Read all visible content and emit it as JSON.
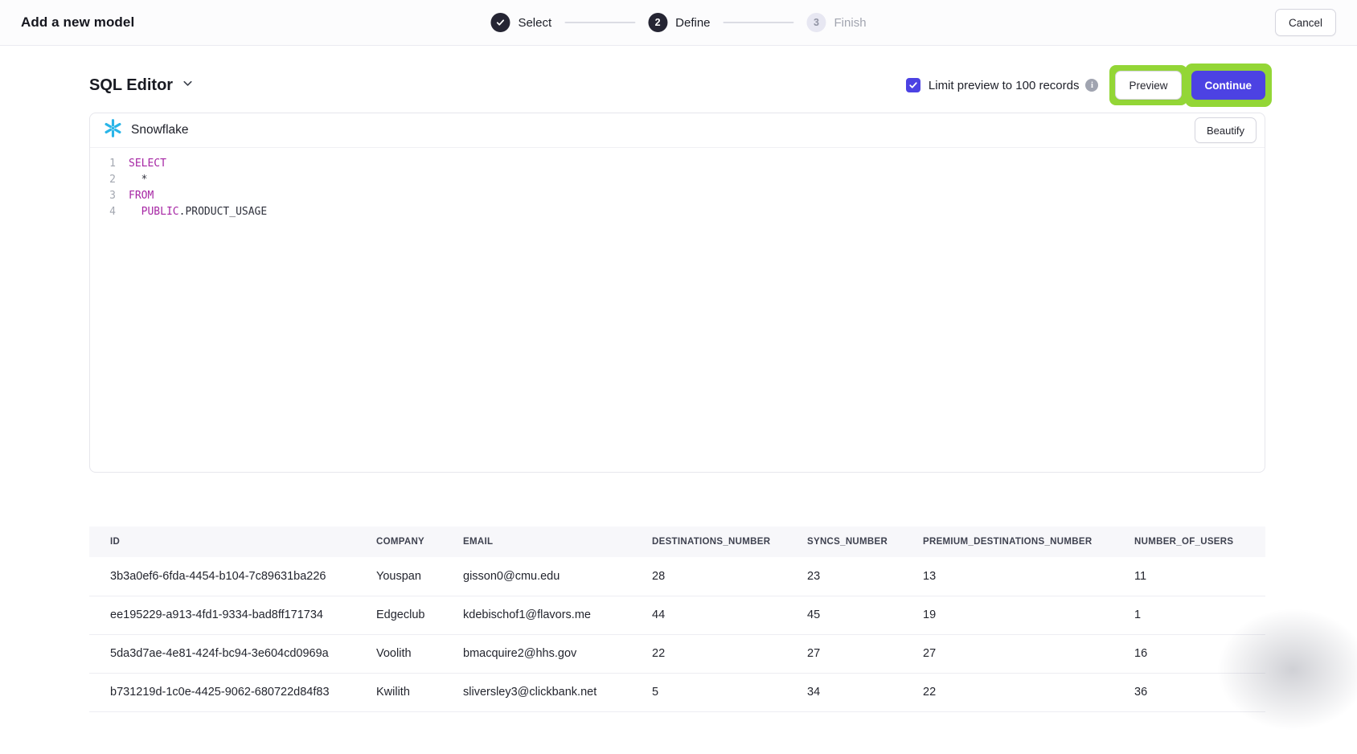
{
  "header": {
    "title": "Add a new model",
    "cancel_label": "Cancel",
    "steps": [
      {
        "label": "Select",
        "state": "complete"
      },
      {
        "label": "Define",
        "number": "2",
        "state": "active"
      },
      {
        "label": "Finish",
        "number": "3",
        "state": "upcoming"
      }
    ]
  },
  "toolbar": {
    "editor_selector": "SQL Editor",
    "limit_checkbox_label": "Limit preview to 100 records",
    "limit_checked": true,
    "preview_label": "Preview",
    "continue_label": "Continue"
  },
  "editor": {
    "source_name": "Snowflake",
    "beautify_label": "Beautify",
    "lines": [
      {
        "num": "1",
        "segments": [
          {
            "text": "SELECT",
            "type": "keyword"
          }
        ]
      },
      {
        "num": "2",
        "segments": [
          {
            "text": "  *",
            "type": "plain"
          }
        ]
      },
      {
        "num": "3",
        "segments": [
          {
            "text": "FROM",
            "type": "keyword"
          }
        ]
      },
      {
        "num": "4",
        "segments": [
          {
            "text": "  ",
            "type": "plain"
          },
          {
            "text": "PUBLIC",
            "type": "keyword"
          },
          {
            "text": ".PRODUCT_USAGE",
            "type": "plain"
          }
        ]
      }
    ]
  },
  "preview_table": {
    "columns": [
      "ID",
      "COMPANY",
      "EMAIL",
      "DESTINATIONS_NUMBER",
      "SYNCS_NUMBER",
      "PREMIUM_DESTINATIONS_NUMBER",
      "NUMBER_OF_USERS"
    ],
    "rows": [
      [
        "3b3a0ef6-6fda-4454-b104-7c89631ba226",
        "Youspan",
        "gisson0@cmu.edu",
        "28",
        "23",
        "13",
        "11"
      ],
      [
        "ee195229-a913-4fd1-9334-bad8ff171734",
        "Edgeclub",
        "kdebischof1@flavors.me",
        "44",
        "45",
        "19",
        "1"
      ],
      [
        "5da3d7ae-4e81-424f-bc94-3e604cd0969a",
        "Voolith",
        "bmacquire2@hhs.gov",
        "22",
        "27",
        "27",
        "16"
      ],
      [
        "b731219d-1c0e-4425-9062-680722d84f83",
        "Kwilith",
        "sliversley3@clickbank.net",
        "5",
        "34",
        "22",
        "36"
      ]
    ]
  },
  "icons": {
    "step_complete": "check-icon",
    "editor_dropdown": "chevron-down-icon",
    "limit_info": "info-icon",
    "source": "snowflake-icon"
  },
  "colors": {
    "accent": "#4C42E3",
    "highlight": "#93D636",
    "snowflake_blue": "#29B5E8",
    "keyword": "#A626A4",
    "code_plain": "#2F313C"
  }
}
